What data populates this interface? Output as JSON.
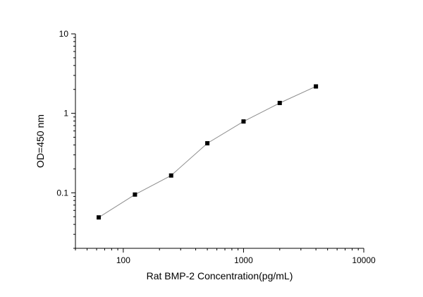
{
  "chart_data": {
    "type": "scatter",
    "xscale": "log",
    "yscale": "log",
    "xlabel": "Rat BMP-2  Concentration(pg/mL)",
    "ylabel": "OD=450 nm",
    "xlim": [
      40,
      10000
    ],
    "ylim": [
      0.02,
      10
    ],
    "xticks": [
      100,
      1000,
      10000
    ],
    "xtick_labels": [
      "100",
      "1000",
      "10000"
    ],
    "yticks": [
      0.1,
      1,
      10
    ],
    "ytick_labels": [
      "0.1",
      "1",
      "10"
    ],
    "grid": false,
    "legend": false,
    "connect_points": true,
    "series": [
      {
        "x": [
          62.5,
          125,
          250,
          500,
          1000,
          2000,
          4000
        ],
        "y": [
          0.049,
          0.095,
          0.165,
          0.42,
          0.79,
          1.35,
          2.18
        ]
      }
    ],
    "colors": {
      "marker": "#000000",
      "line": "#8c8c8c",
      "axis": "#000000"
    }
  }
}
